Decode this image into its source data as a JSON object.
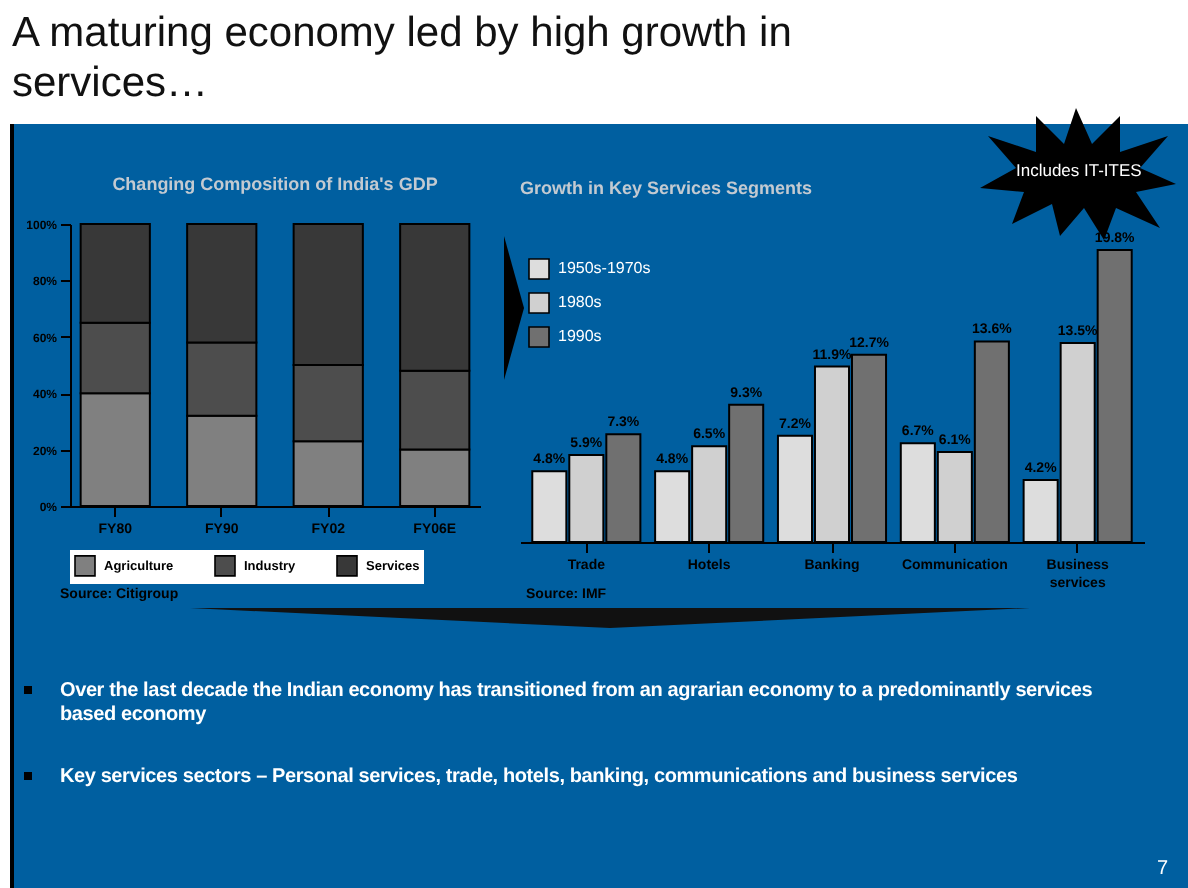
{
  "chart_data": [
    {
      "type": "bar",
      "title": "Changing Composition of India's GDP",
      "stacked": true,
      "categories": [
        "FY80",
        "FY90",
        "FY02",
        "FY06E"
      ],
      "series": [
        {
          "name": "Agriculture",
          "color": "#808080",
          "values": [
            40,
            32,
            23,
            20
          ]
        },
        {
          "name": "Industry",
          "color": "#4d4d4d",
          "values": [
            25,
            26,
            27,
            28
          ]
        },
        {
          "name": "Services",
          "color": "#383838",
          "values": [
            35,
            42,
            50,
            52
          ]
        }
      ],
      "ylim": [
        0,
        100
      ],
      "yticks": [
        {
          "value": 0,
          "label": "0%"
        },
        {
          "value": 20,
          "label": "20%"
        },
        {
          "value": 40,
          "label": "40%"
        },
        {
          "value": 60,
          "label": "60%"
        },
        {
          "value": 80,
          "label": "80%"
        },
        {
          "value": 100,
          "label": "100%"
        }
      ],
      "legend": "bottom",
      "annotations": [
        "A maturing economy led by high growth in services…",
        "Source: Citigroup",
        "Over the last decade the Indian economy has transitioned from an agrarian economy to a predominantly services based economy",
        "Key services sectors – Personal services, trade, hotels, banking, communications and business services",
        "7"
      ]
    },
    {
      "type": "bar",
      "title": "Growth in Key Services Segments",
      "categories": [
        "Trade",
        "Hotels",
        "Banking",
        "Communication",
        "Business services"
      ],
      "series": [
        {
          "name": "1950s-1970s",
          "color": "#dddddd",
          "values": [
            4.8,
            4.8,
            7.2,
            6.7,
            4.2
          ],
          "value_labels": [
            "4.8%",
            "4.8%",
            "7.2%",
            "6.7%",
            "4.2%"
          ]
        },
        {
          "name": "1980s",
          "color": "#d0d0d0",
          "values": [
            5.9,
            6.5,
            11.9,
            6.1,
            13.5
          ],
          "value_labels": [
            "5.9%",
            "6.5%",
            "11.9%",
            "6.1%",
            "13.5%"
          ]
        },
        {
          "name": "1990s",
          "color": "#707070",
          "values": [
            7.3,
            9.3,
            12.7,
            13.6,
            19.8
          ],
          "value_labels": [
            "7.3%",
            "9.3%",
            "12.7%",
            "13.6%",
            "19.8%"
          ]
        }
      ],
      "tick_labels": "x",
      "legend": "top left",
      "annotations": [
        "Source: IMF",
        "Includes IT-ITES"
      ]
    }
  ]
}
